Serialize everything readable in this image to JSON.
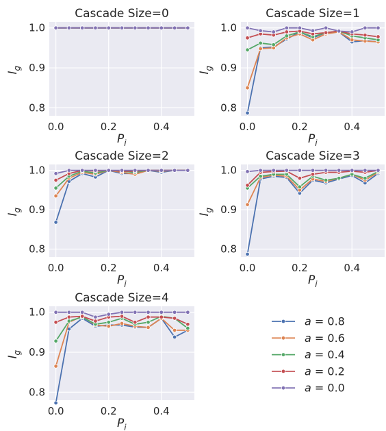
{
  "chart_data": {
    "type": "line",
    "x": [
      0.0,
      0.05,
      0.1,
      0.15,
      0.2,
      0.25,
      0.3,
      0.35,
      0.4,
      0.45,
      0.5
    ],
    "xticks": [
      "0.0",
      "0.2",
      "0.4"
    ],
    "yticks": [
      "0.8",
      "0.9",
      "1.0"
    ],
    "xlim": [
      -0.025,
      0.525
    ],
    "ylim": [
      0.78,
      1.015
    ],
    "xlabel": {
      "base": "P",
      "sub": "i"
    },
    "ylabel": {
      "base": "I",
      "sub": "g"
    },
    "series_colors": [
      "#4c72b0",
      "#dd8452",
      "#55a868",
      "#c44e52",
      "#8172b3"
    ],
    "legend": {
      "position": "lower-right",
      "entries": [
        {
          "prefix": "a",
          "rest": " = 0.8"
        },
        {
          "prefix": "a",
          "rest": " = 0.6"
        },
        {
          "prefix": "a",
          "rest": " = 0.4"
        },
        {
          "prefix": "a",
          "rest": " = 0.2"
        },
        {
          "prefix": "a",
          "rest": " = 0.0"
        }
      ]
    },
    "panels": [
      {
        "title": "Cascade Size=0",
        "series": [
          {
            "values": [
              1,
              1,
              1,
              1,
              1,
              1,
              1,
              1,
              1,
              1,
              1
            ]
          },
          {
            "values": [
              1,
              1,
              1,
              1,
              1,
              1,
              1,
              1,
              1,
              1,
              1
            ]
          },
          {
            "values": [
              1,
              1,
              1,
              1,
              1,
              1,
              1,
              1,
              1,
              1,
              1
            ]
          },
          {
            "values": [
              1,
              1,
              1,
              1,
              1,
              1,
              1,
              1,
              1,
              1,
              1
            ]
          },
          {
            "values": [
              1,
              1,
              1,
              1,
              1,
              1,
              1,
              1,
              1,
              1,
              1
            ]
          }
        ]
      },
      {
        "title": "Cascade Size=1",
        "series": [
          {
            "values": [
              0.787,
              0.95,
              0.952,
              0.972,
              0.99,
              0.975,
              0.988,
              0.99,
              0.965,
              0.968,
              0.965
            ]
          },
          {
            "values": [
              0.85,
              0.948,
              0.95,
              0.975,
              0.985,
              0.97,
              0.985,
              0.99,
              0.97,
              0.967,
              0.965
            ]
          },
          {
            "values": [
              0.945,
              0.962,
              0.958,
              0.98,
              0.99,
              0.978,
              0.988,
              0.992,
              0.98,
              0.975,
              0.97
            ]
          },
          {
            "values": [
              0.975,
              0.985,
              0.982,
              0.99,
              0.992,
              0.985,
              0.988,
              0.992,
              0.985,
              0.982,
              0.978
            ]
          },
          {
            "values": [
              1.0,
              0.993,
              0.99,
              1.0,
              1.0,
              0.993,
              1.0,
              0.992,
              0.99,
              1.0,
              1.0
            ]
          }
        ]
      },
      {
        "title": "Cascade Size=2",
        "series": [
          {
            "values": [
              0.868,
              0.972,
              0.992,
              0.983,
              1.0,
              0.992,
              0.992,
              1.0,
              0.995,
              1.0,
              1.0
            ]
          },
          {
            "values": [
              0.935,
              0.98,
              0.995,
              0.99,
              1.0,
              0.995,
              0.99,
              1.0,
              0.998,
              1.0,
              1.0
            ]
          },
          {
            "values": [
              0.955,
              0.985,
              0.998,
              0.993,
              1.0,
              0.998,
              0.995,
              1.0,
              1.0,
              1.0,
              1.0
            ]
          },
          {
            "values": [
              0.975,
              0.992,
              1.0,
              0.998,
              1.0,
              0.998,
              0.998,
              1.0,
              1.0,
              1.0,
              1.0
            ]
          },
          {
            "values": [
              0.992,
              1.0,
              1.0,
              1.0,
              1.0,
              1.0,
              1.0,
              1.0,
              1.0,
              1.0,
              1.0
            ]
          }
        ]
      },
      {
        "title": "Cascade Size=3",
        "series": [
          {
            "values": [
              0.787,
              0.978,
              0.985,
              0.982,
              0.942,
              0.975,
              0.968,
              0.978,
              0.987,
              0.968,
              0.992
            ]
          },
          {
            "values": [
              0.913,
              0.982,
              0.988,
              0.985,
              0.95,
              0.978,
              0.972,
              0.98,
              0.99,
              0.975,
              0.995
            ]
          },
          {
            "values": [
              0.955,
              0.985,
              0.99,
              0.99,
              0.958,
              0.985,
              0.975,
              0.98,
              0.99,
              0.98,
              0.997
            ]
          },
          {
            "values": [
              0.962,
              0.995,
              0.997,
              0.998,
              0.98,
              0.99,
              0.995,
              0.995,
              0.998,
              0.995,
              1.0
            ]
          },
          {
            "values": [
              0.997,
              1.0,
              1.0,
              1.0,
              1.0,
              1.0,
              1.0,
              1.0,
              1.0,
              1.0,
              1.0
            ]
          }
        ]
      },
      {
        "title": "Cascade Size=4",
        "series": [
          {
            "values": [
              0.773,
              0.958,
              0.985,
              0.965,
              0.968,
              0.968,
              0.963,
              0.962,
              0.985,
              0.938,
              0.955
            ]
          },
          {
            "values": [
              0.865,
              0.975,
              0.99,
              0.968,
              0.965,
              0.972,
              0.965,
              0.962,
              0.985,
              0.955,
              0.955
            ]
          },
          {
            "values": [
              0.928,
              0.978,
              0.988,
              0.97,
              0.975,
              0.985,
              0.97,
              0.975,
              0.99,
              0.985,
              0.96
            ]
          },
          {
            "values": [
              0.975,
              0.988,
              0.99,
              0.978,
              0.988,
              0.99,
              0.975,
              0.988,
              0.988,
              0.985,
              0.97
            ]
          },
          {
            "values": [
              1.0,
              1.0,
              1.0,
              0.988,
              0.995,
              1.0,
              1.0,
              1.0,
              1.0,
              1.0,
              1.0
            ]
          }
        ]
      }
    ]
  }
}
